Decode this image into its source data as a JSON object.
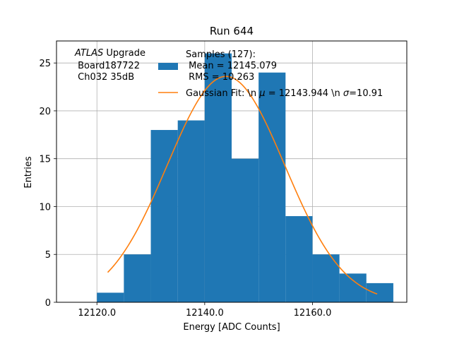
{
  "chart_data": {
    "type": "bar",
    "title": "Run 644",
    "xlabel": "Energy [ADC Counts]",
    "ylabel": "Entries",
    "xlim": [
      12112.5,
      12177.5
    ],
    "ylim": [
      0,
      27.3
    ],
    "grid": true,
    "x_ticks": [
      12120,
      12140,
      12160
    ],
    "x_tick_labels": [
      "12120.0",
      "12140.0",
      "12160.0"
    ],
    "y_ticks": [
      0,
      5,
      10,
      15,
      20,
      25
    ],
    "y_tick_labels": [
      "0",
      "5",
      "10",
      "15",
      "20",
      "25"
    ],
    "bin_edges": [
      12120,
      12125,
      12130,
      12135,
      12140,
      12145,
      12150,
      12155,
      12160,
      12165,
      12170,
      12175
    ],
    "values": [
      1,
      5,
      18,
      19,
      26,
      15,
      24,
      9,
      5,
      3,
      2
    ],
    "bar_color": "#1f77b4",
    "fit": {
      "mu": 12143.944,
      "sigma": 10.91,
      "amplitude": 23.6,
      "x_range": [
        12122,
        12172
      ],
      "color": "#ff7f0e"
    },
    "legend": {
      "position": "top-right",
      "samples_lines": [
        "Samples (127):",
        " Mean = 12145.079",
        " RMS = 10.263"
      ],
      "fit_label_parts": [
        "Gaussian Fit: \\n ",
        "μ",
        " = 12143.944 \\n ",
        "σ",
        "=10.91"
      ]
    },
    "annotation": {
      "atlas": "ATLAS",
      "upgrade": " Upgrade",
      "lines": [
        " Board187722",
        " Ch032 35dB"
      ]
    }
  }
}
